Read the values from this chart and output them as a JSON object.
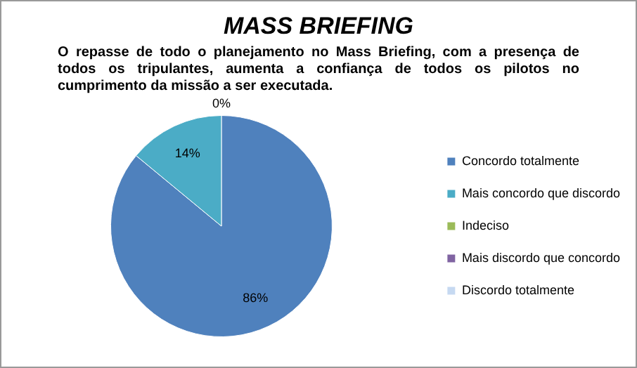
{
  "chart_data": {
    "type": "pie",
    "title": "MASS BRIEFING",
    "subtitle": "O repasse de todo o planejamento no Mass Briefing, com a presença de todos os tripulantes, aumenta a confiança de todos os pilotos no cumprimento da missão a ser executada.",
    "categories": [
      "Concordo totalmente",
      "Mais concordo que discordo",
      "Indeciso",
      "Mais discordo que concordo",
      "Discordo totalmente"
    ],
    "values": [
      86,
      14,
      0,
      0,
      0
    ],
    "colors": [
      "#4f81bd",
      "#4bacc6",
      "#9bbb59",
      "#8064a2",
      "#c6d9f1"
    ],
    "value_labels": [
      "86%",
      "14%",
      "0%",
      null,
      null
    ],
    "legend": "right"
  }
}
